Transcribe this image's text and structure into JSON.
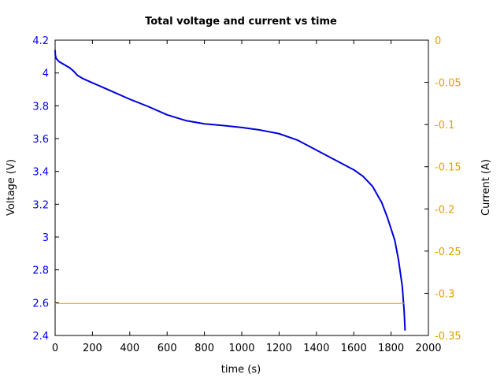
{
  "chart_data": {
    "type": "line",
    "title": "Total voltage and current vs time",
    "xlabel": "time (s)",
    "ylabel": "Voltage (V)",
    "y2label": "Current (A)",
    "xlim": [
      0,
      2000
    ],
    "ylim": [
      2.4,
      4.2
    ],
    "y2lim": [
      -0.35,
      0
    ],
    "xticks": [
      "0",
      "200",
      "400",
      "600",
      "800",
      "1000",
      "1200",
      "1400",
      "1600",
      "1800",
      "2000"
    ],
    "yticks": [
      "2.4",
      "2.6",
      "2.8",
      "3",
      "3.2",
      "3.4",
      "3.6",
      "3.8",
      "4",
      "4.2"
    ],
    "y2ticks": [
      "-0.35",
      "-0.3",
      "-0.25",
      "-0.2",
      "-0.15",
      "-0.1",
      "-0.05",
      "0"
    ],
    "grid": false,
    "colors": {
      "voltage": "#0000dd",
      "current": "#e0a000",
      "left_axis": "#0000ff",
      "right_axis": "#e0a000"
    },
    "series": [
      {
        "axis": "left",
        "x": [
          0,
          1,
          5,
          20,
          50,
          80,
          100,
          120,
          150,
          200,
          300,
          400,
          500,
          600,
          700,
          800,
          900,
          1000,
          1100,
          1200,
          1300,
          1400,
          1500,
          1600,
          1650,
          1700,
          1750,
          1780,
          1800,
          1820,
          1840,
          1850,
          1860,
          1870,
          1875
        ],
        "y": [
          4.14,
          4.11,
          4.09,
          4.07,
          4.05,
          4.03,
          4.01,
          3.985,
          3.965,
          3.94,
          3.89,
          3.84,
          3.795,
          3.745,
          3.71,
          3.69,
          3.68,
          3.668,
          3.652,
          3.63,
          3.59,
          3.53,
          3.47,
          3.41,
          3.37,
          3.31,
          3.21,
          3.12,
          3.05,
          2.98,
          2.86,
          2.78,
          2.7,
          2.55,
          2.43
        ]
      },
      {
        "axis": "right",
        "x": [
          0,
          1870
        ],
        "y": [
          -0.312,
          -0.312
        ]
      }
    ]
  }
}
